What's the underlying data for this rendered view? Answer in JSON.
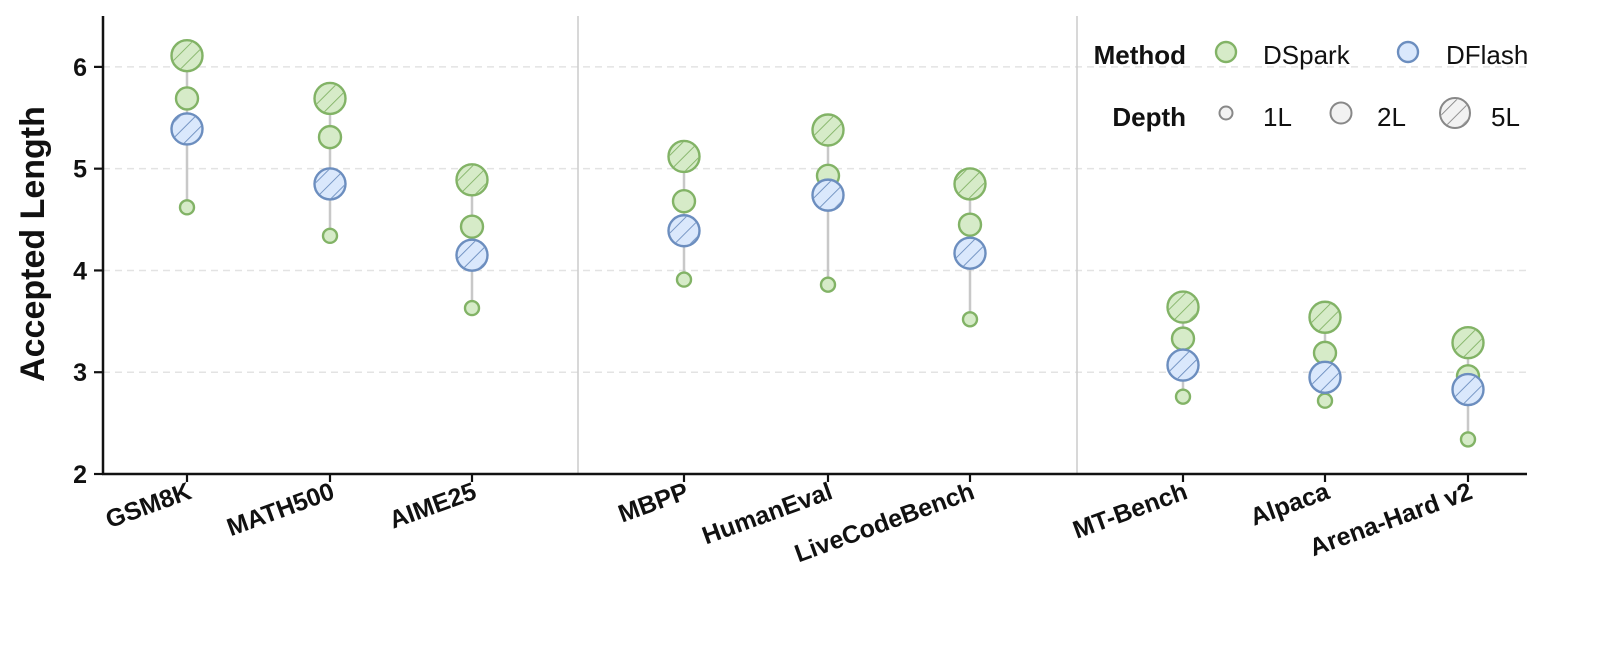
{
  "chart_data": {
    "type": "scatter",
    "ylabel": "Accepted Length",
    "ylim": [
      2,
      6.5
    ],
    "yticks": [
      2,
      3,
      4,
      5,
      6
    ],
    "grid": "horizontal dashed",
    "categories": [
      "GSM8K",
      "MATH500",
      "AIME25",
      "MBPP",
      "HumanEval",
      "LiveCodeBench",
      "MT-Bench",
      "Alpaca",
      "Arena-Hard v2"
    ],
    "groups": [
      [
        "GSM8K",
        "MATH500",
        "AIME25"
      ],
      [
        "MBPP",
        "HumanEval",
        "LiveCodeBench"
      ],
      [
        "MT-Bench",
        "Alpaca",
        "Arena-Hard v2"
      ]
    ],
    "series": [
      {
        "method": "DSpark",
        "depth": "1L",
        "values": [
          4.62,
          4.34,
          3.63,
          3.91,
          3.86,
          3.52,
          2.76,
          2.72,
          2.34
        ]
      },
      {
        "method": "DSpark",
        "depth": "2L",
        "values": [
          5.69,
          5.31,
          4.43,
          4.68,
          4.93,
          4.45,
          3.33,
          3.19,
          2.96
        ]
      },
      {
        "method": "DSpark",
        "depth": "5L",
        "values": [
          6.11,
          5.69,
          4.89,
          5.12,
          5.38,
          4.85,
          3.64,
          3.54,
          3.29
        ]
      },
      {
        "method": "DFlash",
        "depth": "5L",
        "values": [
          5.39,
          4.85,
          4.15,
          4.39,
          4.74,
          4.17,
          3.07,
          2.95,
          2.83
        ]
      }
    ],
    "legend": {
      "position": "top-right",
      "method_title": "Method",
      "methods": [
        {
          "label": "DSpark",
          "fill": "#d6ebc8",
          "stroke": "#82b366"
        },
        {
          "label": "DFlash",
          "fill": "#dae8fc",
          "stroke": "#6c8ebf"
        }
      ],
      "depth_title": "Depth",
      "depths": [
        "1L",
        "2L",
        "5L"
      ]
    },
    "colors": {
      "dspark_fill": "#d6ebc8",
      "dspark_stroke": "#82b366",
      "dflash_fill": "#dae8fc",
      "dflash_stroke": "#6c8ebf",
      "stem": "#c8c8c8",
      "grid": "#e3e3e3",
      "separator": "#cccccc"
    }
  }
}
